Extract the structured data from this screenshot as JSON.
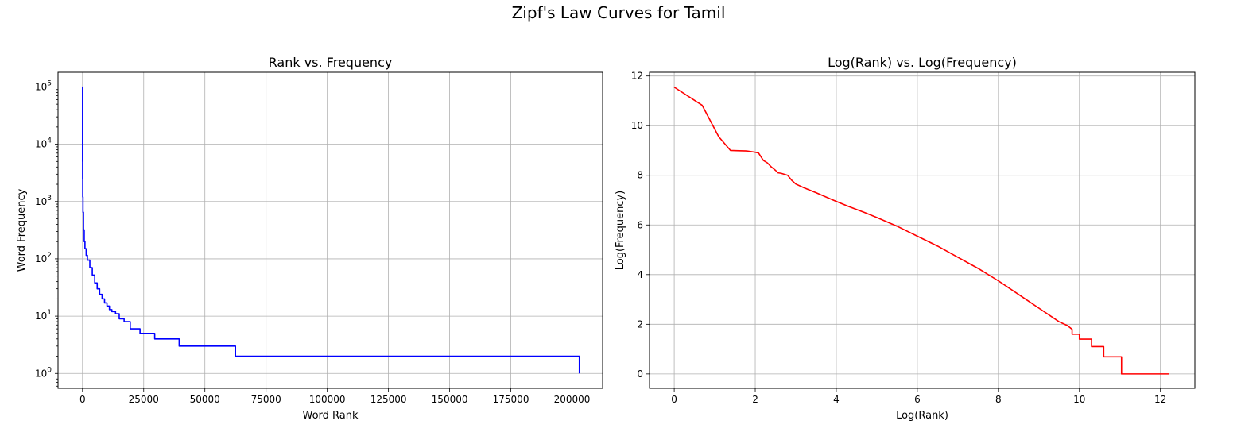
{
  "figure": {
    "title": "Zipf's Law Curves for Tamil"
  },
  "chart_data": [
    {
      "type": "line",
      "title": "Rank vs. Frequency",
      "xlabel": "Word Rank",
      "ylabel": "Word Frequency",
      "yscale": "log",
      "grid": true,
      "color": "#0000ff",
      "xlim": [
        -10000,
        212500
      ],
      "ylim": [
        0.55,
        180000
      ],
      "xticks": [
        0,
        25000,
        50000,
        75000,
        100000,
        125000,
        150000,
        175000,
        200000
      ],
      "xtick_labels": [
        "0",
        "25000",
        "50000",
        "75000",
        "100000",
        "125000",
        "150000",
        "175000",
        "200000"
      ],
      "yticks": [
        1,
        10,
        100,
        1000,
        10000,
        100000
      ],
      "ytick_labels": [
        {
          "base": "10",
          "exp": "0"
        },
        {
          "base": "10",
          "exp": "1"
        },
        {
          "base": "10",
          "exp": "2"
        },
        {
          "base": "10",
          "exp": "3"
        },
        {
          "base": "10",
          "exp": "4"
        },
        {
          "base": "10",
          "exp": "5"
        }
      ],
      "series": [
        {
          "step": true,
          "x": [
            1,
            20,
            50,
            100,
            200,
            400,
            700,
            1000,
            1500,
            2000,
            3000,
            4000,
            5000,
            6000,
            7000,
            8000,
            9000,
            10000,
            11000,
            12000,
            13500,
            15000,
            17000,
            19500,
            23500,
            29500,
            39500,
            62500,
            203000
          ],
          "y": [
            100000,
            5000,
            2500,
            1200,
            650,
            320,
            200,
            150,
            115,
            95,
            70,
            52,
            38,
            30,
            24,
            20,
            17,
            15,
            13,
            12,
            11,
            9,
            8,
            6,
            5,
            4,
            3,
            2,
            1
          ]
        }
      ]
    },
    {
      "type": "line",
      "title": "Log(Rank) vs. Log(Frequency)",
      "xlabel": "Log(Rank)",
      "ylabel": "Log(Frequency)",
      "grid": true,
      "color": "#ff0000",
      "xlim": [
        -0.61,
        12.85
      ],
      "ylim": [
        -0.58,
        12.15
      ],
      "xticks": [
        0,
        2,
        4,
        6,
        8,
        10,
        12
      ],
      "xtick_labels": [
        "0",
        "2",
        "4",
        "6",
        "8",
        "10",
        "12"
      ],
      "yticks": [
        0,
        2,
        4,
        6,
        8,
        10,
        12
      ],
      "ytick_labels": [
        "0",
        "2",
        "4",
        "6",
        "8",
        "10",
        "12"
      ],
      "series": [
        {
          "x": [
            0,
            0.69,
            1.1,
            1.39,
            1.6,
            1.8,
            2.0,
            2.08,
            2.2,
            2.3,
            2.4,
            2.5,
            2.56,
            2.64,
            2.8,
            2.9,
            3.0,
            3.2,
            3.5,
            4.0,
            4.3,
            4.7,
            5.0,
            5.5,
            6.0,
            6.5,
            7.0,
            7.5,
            8.0,
            8.5,
            9.0,
            9.5,
            9.7,
            9.82,
            9.82,
            10.0,
            10.0,
            10.3,
            10.3,
            10.6,
            10.6,
            11.04,
            11.04,
            12.22
          ],
          "y": [
            11.55,
            10.82,
            9.55,
            9.0,
            8.99,
            8.98,
            8.93,
            8.9,
            8.6,
            8.5,
            8.33,
            8.2,
            8.1,
            8.08,
            8.0,
            7.8,
            7.65,
            7.5,
            7.3,
            6.95,
            6.75,
            6.5,
            6.3,
            5.95,
            5.55,
            5.15,
            4.7,
            4.25,
            3.75,
            3.2,
            2.65,
            2.1,
            1.95,
            1.8,
            1.6,
            1.6,
            1.4,
            1.4,
            1.1,
            1.1,
            0.69,
            0.69,
            0.0,
            0.0
          ]
        }
      ]
    }
  ]
}
